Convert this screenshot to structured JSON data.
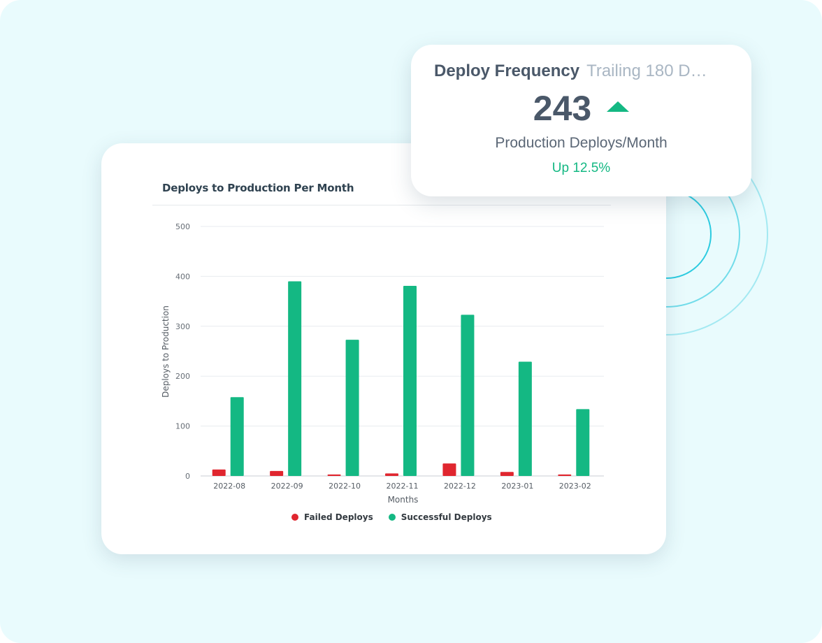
{
  "colors": {
    "background": "#e9fbfd",
    "failed": "#e0262f",
    "successful": "#14b883",
    "ring": "#22c8de",
    "trend_up": "#14b883"
  },
  "stat_card": {
    "title": "Deploy Frequency",
    "subtitle": "Trailing 180 D…",
    "value": "243",
    "trend_icon": "triangle-up-icon",
    "label": "Production Deploys/Month",
    "change": "Up 12.5%"
  },
  "chart_data": {
    "type": "bar",
    "title": "Deploys to Production Per Month",
    "xlabel": "Months",
    "ylabel": "Deploys to Production",
    "ylim": [
      0,
      500
    ],
    "yticks": [
      0,
      100,
      200,
      300,
      400,
      500
    ],
    "grid": true,
    "legend_placement": "bottom",
    "categories": [
      "2022-08",
      "2022-09",
      "2022-10",
      "2022-11",
      "2022-12",
      "2023-01",
      "2023-02"
    ],
    "series": [
      {
        "name": "Failed Deploys",
        "color": "#e0262f",
        "values": [
          13,
          10,
          3,
          5,
          25,
          8,
          3
        ]
      },
      {
        "name": "Successful Deploys",
        "color": "#14b883",
        "values": [
          158,
          390,
          273,
          381,
          323,
          229,
          134
        ]
      }
    ]
  }
}
